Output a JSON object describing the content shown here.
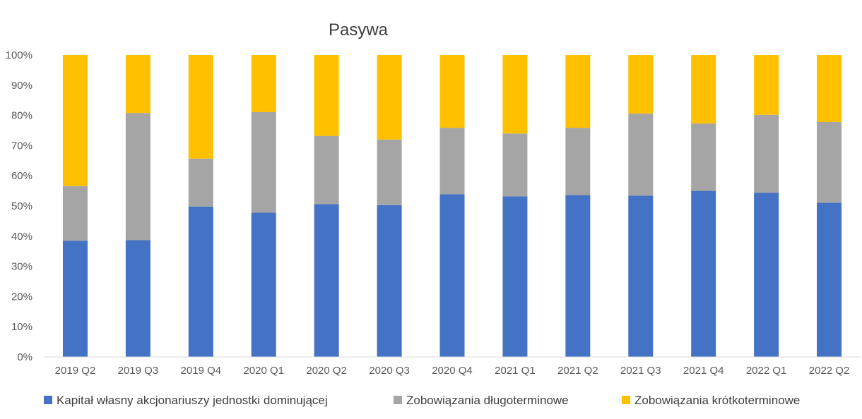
{
  "chart_data": {
    "type": "bar",
    "stacked": true,
    "title": "Pasywa",
    "categories": [
      "2019 Q2",
      "2019 Q3",
      "2019 Q4",
      "2020 Q1",
      "2020 Q2",
      "2020 Q3",
      "2020 Q4",
      "2021 Q1",
      "2021 Q2",
      "2021 Q3",
      "2021 Q4",
      "2022 Q1",
      "2022 Q2"
    ],
    "series": [
      {
        "name": "Kapitał własny akcjonariuszy jednostki dominującej",
        "color": "#4472C4",
        "values": [
          38.5,
          38.7,
          49.8,
          47.8,
          50.6,
          50.3,
          53.9,
          53.2,
          53.6,
          53.4,
          55.0,
          54.4,
          51.1
        ]
      },
      {
        "name": "Zobowiązania długoterminowe",
        "color": "#A5A5A5",
        "values": [
          18.1,
          42.1,
          15.9,
          33.3,
          22.6,
          21.7,
          22.0,
          20.8,
          22.3,
          27.2,
          22.3,
          25.8,
          26.7
        ]
      },
      {
        "name": "Zobowiązania krótkoterminowe",
        "color": "#FFC000",
        "values": [
          43.4,
          19.2,
          34.3,
          18.9,
          26.8,
          28.0,
          24.1,
          26.0,
          24.1,
          19.4,
          22.7,
          19.8,
          22.2
        ]
      }
    ],
    "y_ticks": [
      "0%",
      "10%",
      "20%",
      "30%",
      "40%",
      "50%",
      "60%",
      "70%",
      "80%",
      "90%",
      "100%"
    ],
    "ylim": [
      0,
      100
    ],
    "grid": false,
    "legend_position": "bottom",
    "xlabel": "",
    "ylabel": ""
  }
}
